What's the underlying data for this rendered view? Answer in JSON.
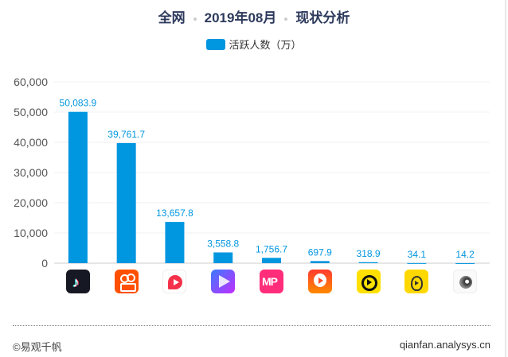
{
  "title": {
    "part1": "全网",
    "part2": "2019年08月",
    "part3": "现状分析"
  },
  "legend": {
    "label": "活跃人数（万）",
    "color": "#0096e0"
  },
  "footer": {
    "left": "©易观千帆",
    "right": "qianfan.analysys.cn"
  },
  "chart_data": {
    "type": "bar",
    "categories": [
      "douyin-icon",
      "kuaishou-icon",
      "weishi-icon",
      "haokan-icon",
      "meipai-icon",
      "huoshan-icon",
      "miaopai-icon",
      "lishipin-icon",
      "other-icon"
    ],
    "values": [
      50083.9,
      39761.7,
      13657.8,
      3558.8,
      1756.7,
      697.9,
      318.9,
      34.1,
      14.2
    ],
    "value_labels": [
      "50,083.9",
      "39,761.7",
      "13,657.8",
      "3,558.8",
      "1,756.7",
      "697.9",
      "318.9",
      "34.1",
      "14.2"
    ],
    "series": [
      {
        "name": "活跃人数（万）",
        "values": [
          50083.9,
          39761.7,
          13657.8,
          3558.8,
          1756.7,
          697.9,
          318.9,
          34.1,
          14.2
        ]
      }
    ],
    "ylim": [
      0,
      60000
    ],
    "yticks": [
      "0",
      "10,000",
      "20,000",
      "30,000",
      "40,000",
      "50,000",
      "60,000"
    ],
    "grid": true,
    "legend_position": "top-center",
    "bar_color": "#0096e0"
  }
}
